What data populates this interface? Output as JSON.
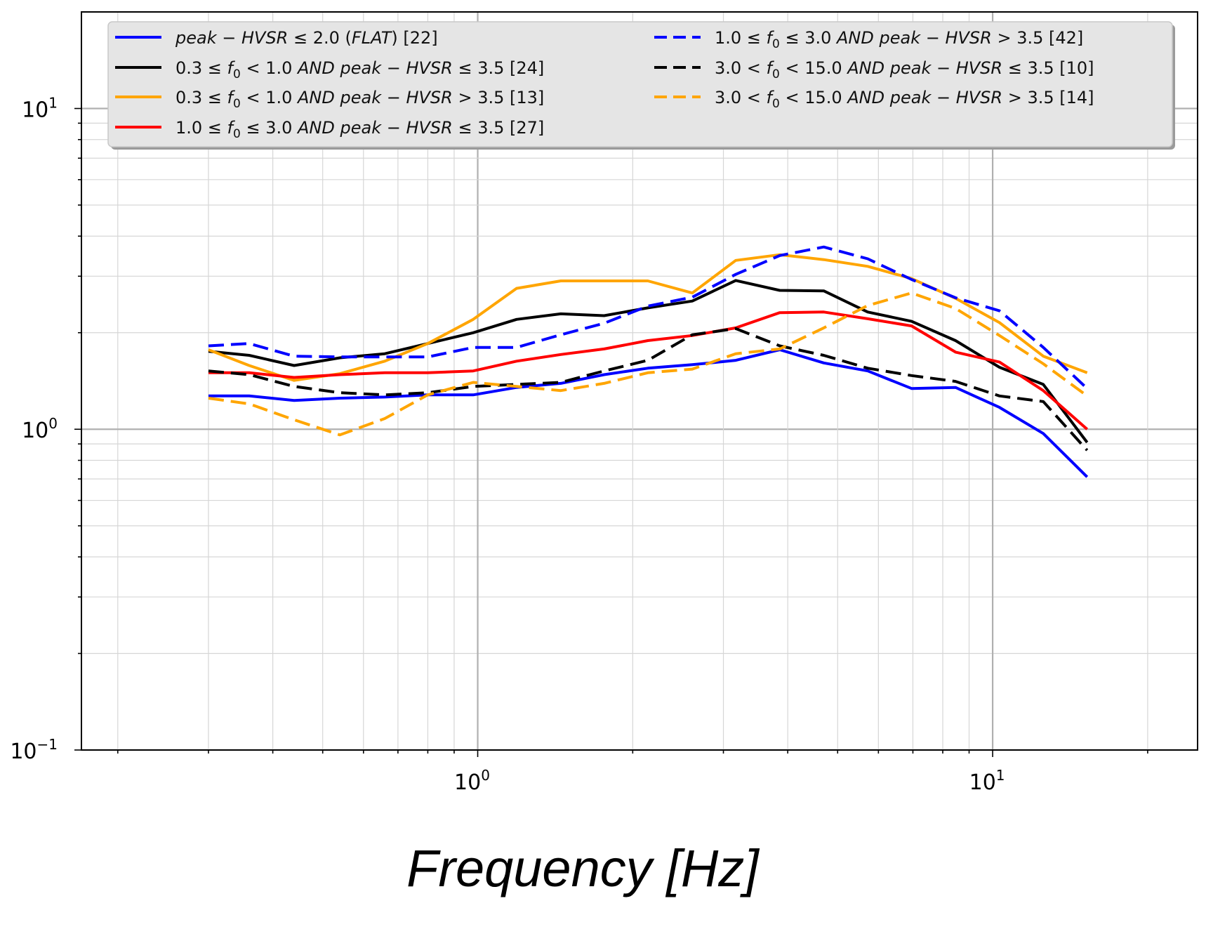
{
  "chart_data": {
    "type": "line",
    "title": "",
    "xlabel": "Frequency [Hz]",
    "ylabel": "",
    "xscale": "log",
    "yscale": "log",
    "xlim": [
      0.17,
      25.0
    ],
    "ylim": [
      0.1,
      20.0
    ],
    "grid": true,
    "legend_position": "top",
    "x_ticks": [
      {
        "value": 1,
        "base": "10",
        "exp": "0"
      },
      {
        "value": 10,
        "base": "10",
        "exp": "1"
      }
    ],
    "y_ticks": [
      {
        "value": 0.1,
        "base": "10",
        "exp": "−1"
      },
      {
        "value": 1,
        "base": "10",
        "exp": "0"
      },
      {
        "value": 10,
        "base": "10",
        "exp": "1"
      }
    ],
    "x": [
      0.3,
      0.36,
      0.44,
      0.54,
      0.66,
      0.8,
      0.98,
      1.19,
      1.45,
      1.76,
      2.14,
      2.61,
      3.17,
      3.86,
      4.7,
      5.72,
      6.96,
      8.47,
      10.31,
      12.54,
      15.26
    ],
    "series": [
      {
        "color": "#0000ff",
        "dash": "solid",
        "legend": [
          {
            "t": "peak − HVSR",
            "i": true
          },
          {
            "t": " ≤ 2.0 (",
            "i": false
          },
          {
            "t": "FLAT",
            "i": true
          },
          {
            "t": ") [22]",
            "i": false
          }
        ],
        "values": [
          1.27,
          1.27,
          1.23,
          1.25,
          1.26,
          1.28,
          1.28,
          1.35,
          1.39,
          1.48,
          1.55,
          1.59,
          1.64,
          1.77,
          1.61,
          1.52,
          1.34,
          1.35,
          1.17,
          0.97,
          0.71
        ]
      },
      {
        "color": "#000000",
        "dash": "solid",
        "legend": [
          {
            "t": "0.3 ≤ ",
            "i": false
          },
          {
            "t": "f",
            "i": true
          },
          {
            "t": "0",
            "i": false,
            "sub": true
          },
          {
            "t": " < 1.0 ",
            "i": false
          },
          {
            "t": "AND peak − HVSR",
            "i": true
          },
          {
            "t": " ≤ 3.5 [24]",
            "i": false
          }
        ],
        "values": [
          1.75,
          1.7,
          1.58,
          1.67,
          1.72,
          1.85,
          2.0,
          2.2,
          2.29,
          2.26,
          2.39,
          2.51,
          2.91,
          2.71,
          2.7,
          2.32,
          2.17,
          1.89,
          1.56,
          1.38,
          0.91
        ]
      },
      {
        "color": "#ffa500",
        "dash": "solid",
        "legend": [
          {
            "t": "0.3 ≤ ",
            "i": false
          },
          {
            "t": "f",
            "i": true
          },
          {
            "t": "0",
            "i": false,
            "sub": true
          },
          {
            "t": " < 1.0 ",
            "i": false
          },
          {
            "t": "AND peak − HVSR",
            "i": true
          },
          {
            "t": " > 3.5 [13]",
            "i": false
          }
        ],
        "values": [
          1.77,
          1.58,
          1.42,
          1.49,
          1.63,
          1.85,
          2.2,
          2.75,
          2.9,
          2.9,
          2.9,
          2.66,
          3.36,
          3.5,
          3.38,
          3.22,
          2.95,
          2.56,
          2.15,
          1.69,
          1.5
        ]
      },
      {
        "color": "#ff0000",
        "dash": "solid",
        "legend": [
          {
            "t": "1.0 ≤ ",
            "i": false
          },
          {
            "t": "f",
            "i": true
          },
          {
            "t": "0",
            "i": false,
            "sub": true
          },
          {
            "t": " ≤ 3.0 ",
            "i": false
          },
          {
            "t": "AND peak − HVSR",
            "i": true
          },
          {
            "t": " ≤ 3.5 [27]",
            "i": false
          }
        ],
        "values": [
          1.5,
          1.5,
          1.45,
          1.48,
          1.5,
          1.5,
          1.52,
          1.63,
          1.71,
          1.78,
          1.89,
          1.96,
          2.07,
          2.31,
          2.32,
          2.21,
          2.1,
          1.74,
          1.62,
          1.32,
          1.0
        ]
      },
      {
        "color": "#0000ff",
        "dash": "dashed",
        "legend": [
          {
            "t": "1.0 ≤ ",
            "i": false
          },
          {
            "t": "f",
            "i": true
          },
          {
            "t": "0",
            "i": false,
            "sub": true
          },
          {
            "t": " ≤ 3.0 ",
            "i": false
          },
          {
            "t": "AND peak − HVSR",
            "i": true
          },
          {
            "t": " > 3.5 [42]",
            "i": false
          }
        ],
        "values": [
          1.82,
          1.85,
          1.69,
          1.68,
          1.68,
          1.68,
          1.8,
          1.8,
          1.97,
          2.14,
          2.42,
          2.58,
          3.04,
          3.48,
          3.7,
          3.4,
          2.93,
          2.57,
          2.34,
          1.8,
          1.34
        ]
      },
      {
        "color": "#000000",
        "dash": "dashed",
        "legend": [
          {
            "t": "3.0 < ",
            "i": false
          },
          {
            "t": "f",
            "i": true
          },
          {
            "t": "0",
            "i": false,
            "sub": true
          },
          {
            "t": " < 15.0 ",
            "i": false
          },
          {
            "t": "AND peak − HVSR",
            "i": true
          },
          {
            "t": " ≤ 3.5 [10]",
            "i": false
          }
        ],
        "values": [
          1.52,
          1.48,
          1.36,
          1.3,
          1.28,
          1.3,
          1.36,
          1.38,
          1.4,
          1.52,
          1.64,
          1.97,
          2.06,
          1.82,
          1.7,
          1.55,
          1.47,
          1.41,
          1.27,
          1.22,
          0.86
        ]
      },
      {
        "color": "#ffa500",
        "dash": "dashed",
        "legend": [
          {
            "t": "3.0 < ",
            "i": false
          },
          {
            "t": "f",
            "i": true
          },
          {
            "t": "0",
            "i": false,
            "sub": true
          },
          {
            "t": " < 15.0 ",
            "i": false
          },
          {
            "t": "AND peak − HVSR",
            "i": true
          },
          {
            "t": " > 3.5 [14]",
            "i": false
          }
        ],
        "values": [
          1.25,
          1.2,
          1.07,
          0.96,
          1.08,
          1.28,
          1.4,
          1.36,
          1.32,
          1.39,
          1.5,
          1.54,
          1.72,
          1.78,
          2.07,
          2.43,
          2.66,
          2.38,
          1.96,
          1.6,
          1.27
        ]
      }
    ]
  }
}
